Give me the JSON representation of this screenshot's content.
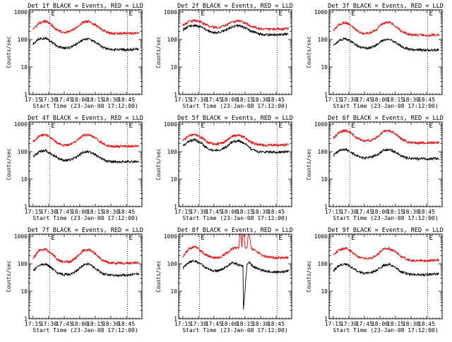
{
  "figure": {
    "x_ticks": [
      "17:15",
      "17:30",
      "17:45",
      "18:00",
      "18:15",
      "18:30",
      "18:45"
    ],
    "y_ticks": [
      "1",
      "10",
      "100",
      "1000"
    ],
    "y_scale": "log",
    "ylim": [
      1,
      1200
    ],
    "xlim_minutes": [
      -4,
      105
    ],
    "xlabel": "Start Time (23-Jan-08 17:12:00)",
    "ylabel": "Counts/sec",
    "eclipse_marker": "E",
    "colors": {
      "events": "#000000",
      "lld": "#ff0000",
      "axis": "#000000",
      "dotted": "#000000"
    }
  },
  "chart_data": [
    {
      "type": "line",
      "title": "Det 1f BLACK = Events, RED = LLD",
      "series": [
        {
          "color": "#000000",
          "x": [
            0,
            6,
            12,
            18,
            24,
            30,
            36,
            42,
            48,
            54,
            60,
            66,
            72,
            78,
            84,
            90,
            96,
            102
          ],
          "values": [
            70,
            105,
            115,
            80,
            55,
            48,
            52,
            68,
            100,
            105,
            80,
            55,
            45,
            42,
            43,
            42,
            44,
            45
          ]
        },
        {
          "color": "#ff0000",
          "x": [
            0,
            6,
            12,
            18,
            24,
            30,
            36,
            42,
            48,
            54,
            60,
            66,
            72,
            78,
            84,
            90,
            96,
            102
          ],
          "values": [
            240,
            400,
            470,
            330,
            210,
            185,
            200,
            270,
            420,
            460,
            340,
            230,
            175,
            165,
            165,
            165,
            168,
            172
          ]
        }
      ]
    },
    {
      "type": "line",
      "title": "Det 2f BLACK = Events, RED = LLD",
      "series": [
        {
          "color": "#000000",
          "x": [
            0,
            6,
            12,
            18,
            24,
            30,
            36,
            42,
            48,
            54,
            60,
            66,
            72,
            78,
            84,
            90,
            96,
            102
          ],
          "values": [
            220,
            300,
            330,
            280,
            210,
            175,
            180,
            230,
            300,
            320,
            270,
            200,
            165,
            150,
            150,
            150,
            152,
            155
          ]
        },
        {
          "color": "#ff0000",
          "x": [
            0,
            6,
            12,
            18,
            24,
            30,
            36,
            42,
            48,
            54,
            60,
            66,
            72,
            78,
            84,
            90,
            96,
            102
          ],
          "values": [
            330,
            450,
            500,
            420,
            320,
            275,
            280,
            340,
            450,
            480,
            410,
            300,
            255,
            240,
            240,
            240,
            245,
            250
          ]
        }
      ]
    },
    {
      "type": "line",
      "title": "Det 3f BLACK = Events, RED = LLD",
      "series": [
        {
          "color": "#000000",
          "x": [
            0,
            6,
            12,
            18,
            24,
            30,
            36,
            42,
            48,
            54,
            60,
            66,
            72,
            78,
            84,
            90,
            96,
            102
          ],
          "values": [
            60,
            95,
            110,
            80,
            55,
            48,
            50,
            65,
            95,
            105,
            80,
            55,
            45,
            42,
            42,
            40,
            42,
            43
          ]
        },
        {
          "color": "#ff0000",
          "x": [
            0,
            6,
            12,
            18,
            24,
            30,
            36,
            42,
            48,
            54,
            60,
            66,
            72,
            78,
            84,
            90,
            96,
            102
          ],
          "values": [
            220,
            360,
            420,
            300,
            190,
            165,
            175,
            240,
            380,
            420,
            310,
            200,
            155,
            145,
            145,
            140,
            148,
            150
          ]
        }
      ]
    },
    {
      "type": "line",
      "title": "Det 4f BLACK = Events, RED = LLD",
      "series": [
        {
          "color": "#000000",
          "x": [
            0,
            6,
            12,
            18,
            24,
            30,
            36,
            42,
            48,
            54,
            60,
            66,
            72,
            78,
            84,
            90,
            96,
            102
          ],
          "values": [
            65,
            100,
            110,
            80,
            58,
            48,
            50,
            65,
            95,
            100,
            78,
            55,
            45,
            42,
            42,
            42,
            44,
            45
          ]
        },
        {
          "color": "#ff0000",
          "x": [
            0,
            6,
            12,
            18,
            24,
            30,
            36,
            42,
            48,
            54,
            60,
            66,
            72,
            78,
            84,
            90,
            96,
            102
          ],
          "values": [
            230,
            380,
            420,
            310,
            200,
            170,
            180,
            240,
            390,
            420,
            320,
            210,
            165,
            155,
            155,
            155,
            160,
            165
          ]
        }
      ]
    },
    {
      "type": "line",
      "title": "Det 5f BLACK = Events, RED = LLD",
      "series": [
        {
          "color": "#000000",
          "x": [
            0,
            6,
            12,
            18,
            24,
            30,
            36,
            42,
            48,
            54,
            60,
            66,
            72,
            78,
            84,
            90,
            96,
            102
          ],
          "values": [
            160,
            240,
            270,
            200,
            130,
            110,
            115,
            150,
            230,
            250,
            190,
            125,
            100,
            95,
            95,
            95,
            97,
            100
          ]
        },
        {
          "color": "#ff0000",
          "x": [
            0,
            6,
            12,
            18,
            24,
            30,
            36,
            42,
            48,
            54,
            60,
            66,
            72,
            78,
            84,
            90,
            96,
            102
          ],
          "values": [
            250,
            380,
            420,
            320,
            220,
            190,
            195,
            250,
            380,
            410,
            320,
            220,
            180,
            170,
            170,
            170,
            172,
            175
          ]
        }
      ]
    },
    {
      "type": "line",
      "title": "Det 6f BLACK = Events, RED = LLD",
      "series": [
        {
          "color": "#000000",
          "x": [
            0,
            6,
            12,
            18,
            24,
            30,
            36,
            42,
            48,
            54,
            60,
            66,
            72,
            78,
            84,
            90,
            96,
            102
          ],
          "values": [
            75,
            110,
            120,
            90,
            70,
            60,
            62,
            75,
            110,
            120,
            95,
            68,
            58,
            55,
            55,
            55,
            56,
            57
          ]
        },
        {
          "color": "#ff0000",
          "x": [
            0,
            6,
            12,
            18,
            24,
            30,
            36,
            42,
            48,
            54,
            60,
            66,
            72,
            78,
            84,
            90,
            96,
            102
          ],
          "values": [
            300,
            520,
            600,
            440,
            290,
            245,
            255,
            330,
            520,
            590,
            450,
            290,
            225,
            210,
            210,
            210,
            212,
            215
          ]
        }
      ]
    },
    {
      "type": "line",
      "title": "Det 7f BLACK = Events, RED = LLD",
      "series": [
        {
          "color": "#000000",
          "x": [
            0,
            6,
            12,
            18,
            24,
            30,
            36,
            42,
            48,
            54,
            60,
            66,
            72,
            78,
            84,
            90,
            96,
            102
          ],
          "values": [
            55,
            90,
            100,
            70,
            45,
            40,
            42,
            55,
            90,
            100,
            70,
            45,
            40,
            38,
            38,
            38,
            40,
            42
          ]
        },
        {
          "color": "#ff0000",
          "x": [
            0,
            6,
            12,
            18,
            24,
            30,
            36,
            42,
            48,
            54,
            60,
            66,
            72,
            78,
            84,
            90,
            96,
            102
          ],
          "values": [
            160,
            300,
            340,
            230,
            140,
            115,
            120,
            170,
            300,
            330,
            230,
            140,
            110,
            105,
            105,
            105,
            108,
            110
          ]
        }
      ]
    },
    {
      "type": "line",
      "title": "Det 8f BLACK = Events, RED = LLD",
      "series": [
        {
          "color": "#000000",
          "x": [
            0,
            6,
            12,
            18,
            24,
            30,
            36,
            42,
            48,
            54,
            58,
            58.5,
            62,
            63,
            64,
            66,
            72,
            78,
            84,
            90,
            96,
            102
          ],
          "values": [
            70,
            115,
            130,
            95,
            65,
            55,
            58,
            75,
            110,
            90,
            85,
            2,
            100,
            100,
            120,
            90,
            65,
            55,
            52,
            50,
            52,
            55
          ]
        },
        {
          "color": "#ff0000",
          "x": [
            0,
            6,
            12,
            18,
            24,
            30,
            36,
            42,
            48,
            54,
            55,
            56,
            57,
            58,
            59,
            60,
            62,
            63,
            64,
            66,
            72,
            78,
            84,
            90,
            96,
            102
          ],
          "values": [
            180,
            350,
            420,
            280,
            190,
            160,
            170,
            240,
            360,
            380,
            1200,
            1200,
            400,
            1200,
            1200,
            380,
            400,
            1200,
            1200,
            380,
            260,
            190,
            170,
            165,
            165,
            168
          ]
        }
      ]
    },
    {
      "type": "line",
      "title": "Det 9f BLACK = Events, RED = LLD",
      "series": [
        {
          "color": "#000000",
          "x": [
            0,
            6,
            12,
            18,
            24,
            30,
            36,
            42,
            48,
            54,
            60,
            66,
            72,
            78,
            84,
            90,
            96,
            102
          ],
          "values": [
            55,
            88,
            98,
            72,
            52,
            44,
            46,
            58,
            88,
            95,
            72,
            50,
            42,
            40,
            40,
            40,
            42,
            44
          ]
        },
        {
          "color": "#ff0000",
          "x": [
            0,
            6,
            12,
            18,
            24,
            30,
            36,
            42,
            48,
            54,
            60,
            66,
            72,
            78,
            84,
            90,
            96,
            102
          ],
          "values": [
            210,
            330,
            370,
            270,
            180,
            150,
            158,
            210,
            330,
            360,
            270,
            180,
            140,
            132,
            132,
            132,
            135,
            138
          ]
        }
      ]
    }
  ]
}
